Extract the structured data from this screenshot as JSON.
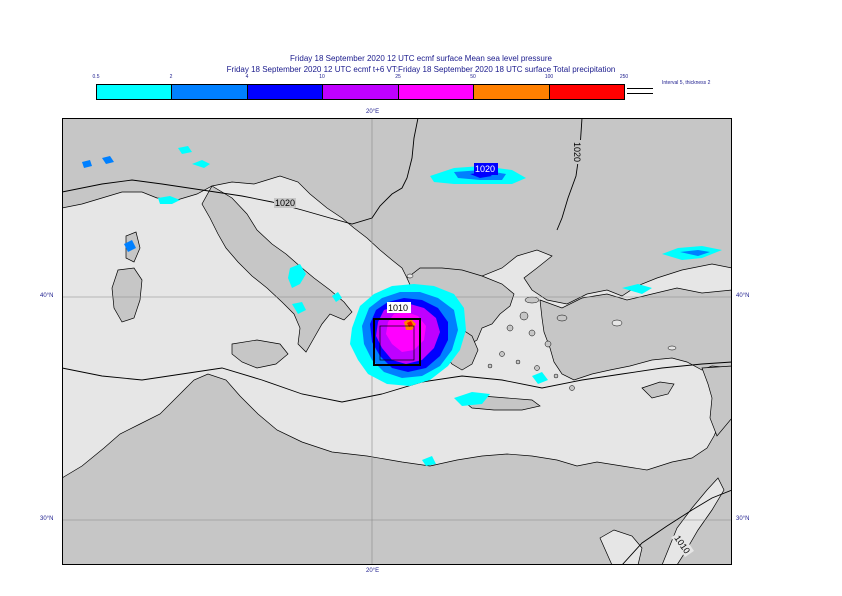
{
  "titles": {
    "line1": "Friday 18 September 2020 12 UTC ecmf surface  Mean sea level pressure",
    "line2": "Friday 18 September 2020 12 UTC ecmf t+6 VT:Friday 18 September 2020 18 UTC surface  Total precipitation"
  },
  "legend": {
    "ticks": [
      "0.5",
      "2",
      "4",
      "10",
      "25",
      "50",
      "100",
      "250"
    ],
    "colors": [
      "#00ffff",
      "#0080ff",
      "#0000ff",
      "#bf00ff",
      "#ff00ff",
      "#ff8000",
      "#ff0000"
    ],
    "contour_info": "Interval 5, thickness 2"
  },
  "grid": {
    "lon_label": "20°E",
    "lat_labels": [
      "40°N",
      "30°N"
    ]
  },
  "isobar_labels": [
    "1020",
    "1020",
    "1020",
    "1010",
    "1010"
  ],
  "colors": {
    "land": "#c6c6c6",
    "sea": "#e6e6e6",
    "title": "#1a1a8c"
  }
}
